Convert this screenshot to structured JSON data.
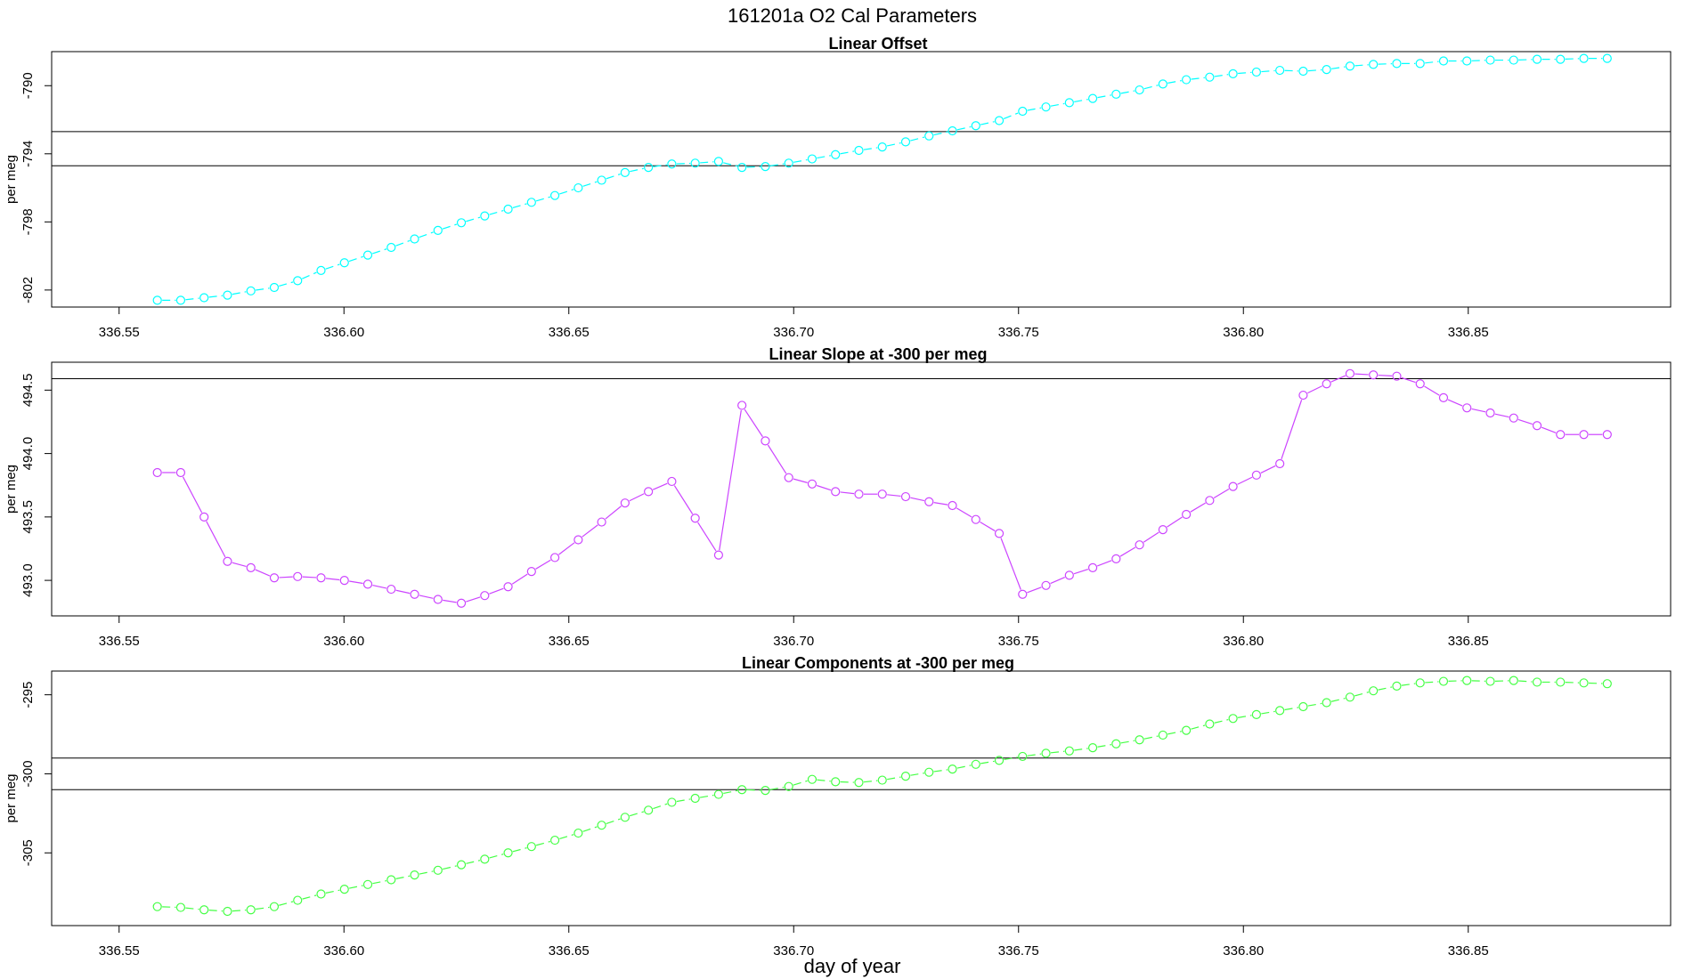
{
  "title": "161201a    O2 Cal Parameters",
  "xlabel": "day of year",
  "chart_data": [
    {
      "type": "line",
      "title": "Linear Offset",
      "ylabel": "per meg",
      "color": "#00ffff",
      "linestyle": "dashed",
      "xlim": [
        336.535,
        336.895
      ],
      "ylim": [
        -803.0,
        -788.0
      ],
      "xticks": [
        "336.55",
        "336.60",
        "336.65",
        "336.70",
        "336.75",
        "336.80",
        "336.85"
      ],
      "yticks": [
        "-790",
        "-794",
        "-798",
        "-802"
      ],
      "hlines": [
        -792.7,
        -794.7
      ],
      "x": [
        336.5585,
        336.5637,
        336.5689,
        336.5741,
        336.5793,
        336.5845,
        336.5897,
        336.5949,
        336.6001,
        336.6053,
        336.6105,
        336.6157,
        336.6209,
        336.6261,
        336.6313,
        336.6365,
        336.6417,
        336.6469,
        336.6521,
        336.6573,
        336.6625,
        336.6677,
        336.6729,
        336.6781,
        336.6833,
        336.6885,
        336.6937,
        336.6989,
        336.7041,
        336.7093,
        336.7145,
        336.7197,
        336.7249,
        336.7301,
        336.7353,
        336.7405,
        336.7457,
        336.7509,
        336.7561,
        336.7613,
        336.7665,
        336.7717,
        336.7769,
        336.7821,
        336.7873,
        336.7925,
        336.7977,
        336.8029,
        336.8081,
        336.8133,
        336.8185,
        336.8237,
        336.8289,
        336.8341,
        336.8393,
        336.8445,
        336.8497,
        336.8549,
        336.8601,
        336.8653,
        336.8705,
        336.8757,
        336.8809
      ],
      "y": [
        -802.6,
        -802.6,
        -802.45,
        -802.3,
        -802.05,
        -801.85,
        -801.45,
        -800.85,
        -800.4,
        -799.95,
        -799.5,
        -799.0,
        -798.5,
        -798.05,
        -797.65,
        -797.25,
        -796.85,
        -796.45,
        -796.0,
        -795.55,
        -795.1,
        -794.8,
        -794.6,
        -794.55,
        -794.45,
        -794.8,
        -794.75,
        -794.55,
        -794.3,
        -794.05,
        -793.8,
        -793.6,
        -793.3,
        -792.95,
        -792.65,
        -792.35,
        -792.05,
        -791.5,
        -791.25,
        -791.0,
        -790.75,
        -790.5,
        -790.25,
        -789.9,
        -789.65,
        -789.5,
        -789.3,
        -789.2,
        -789.1,
        -789.15,
        -789.05,
        -788.85,
        -788.75,
        -788.7,
        -788.7,
        -788.55,
        -788.55,
        -788.5,
        -788.5,
        -788.45,
        -788.45,
        -788.4,
        -788.4
      ]
    },
    {
      "type": "line",
      "title": "Linear Slope at -300 per meg",
      "ylabel": "per meg",
      "color": "#cc44ff",
      "linestyle": "solid",
      "xlim": [
        336.535,
        336.895
      ],
      "ylim": [
        492.72,
        494.72
      ],
      "xticks": [
        "336.55",
        "336.60",
        "336.65",
        "336.70",
        "336.75",
        "336.80",
        "336.85"
      ],
      "yticks": [
        "493.0",
        "493.5",
        "494.0",
        "494.5"
      ],
      "hlines": [
        494.59
      ],
      "x": [
        336.5585,
        336.5637,
        336.5689,
        336.5741,
        336.5793,
        336.5845,
        336.5897,
        336.5949,
        336.6001,
        336.6053,
        336.6105,
        336.6157,
        336.6209,
        336.6261,
        336.6313,
        336.6365,
        336.6417,
        336.6469,
        336.6521,
        336.6573,
        336.6625,
        336.6677,
        336.6729,
        336.6781,
        336.6833,
        336.6885,
        336.6937,
        336.6989,
        336.7041,
        336.7093,
        336.7145,
        336.7197,
        336.7249,
        336.7301,
        336.7353,
        336.7405,
        336.7457,
        336.7509,
        336.7561,
        336.7613,
        336.7665,
        336.7717,
        336.7769,
        336.7821,
        336.7873,
        336.7925,
        336.7977,
        336.8029,
        336.8081,
        336.8133,
        336.8185,
        336.8237,
        336.8289,
        336.8341,
        336.8393,
        336.8445,
        336.8497,
        336.8549,
        336.8601,
        336.8653,
        336.8705,
        336.8757,
        336.8809
      ],
      "y": [
        493.85,
        493.85,
        493.5,
        493.15,
        493.1,
        493.02,
        493.03,
        493.02,
        493.0,
        492.97,
        492.93,
        492.89,
        492.85,
        492.82,
        492.88,
        492.95,
        493.07,
        493.18,
        493.32,
        493.46,
        493.61,
        493.7,
        493.78,
        493.49,
        493.2,
        494.38,
        494.1,
        493.81,
        493.76,
        493.7,
        493.68,
        493.68,
        493.66,
        493.62,
        493.59,
        493.48,
        493.37,
        492.89,
        492.96,
        493.04,
        493.1,
        493.17,
        493.28,
        493.4,
        493.52,
        493.63,
        493.74,
        493.83,
        493.92,
        494.46,
        494.55,
        494.63,
        494.62,
        494.61,
        494.55,
        494.44,
        494.36,
        494.32,
        494.28,
        494.22,
        494.15,
        494.15,
        494.15
      ]
    },
    {
      "type": "line",
      "title": "Linear Components at -300 per meg",
      "ylabel": "per meg",
      "color": "#44ff44",
      "linestyle": "dashed",
      "xlim": [
        336.535,
        336.895
      ],
      "ylim": [
        -309.6,
        -293.5
      ],
      "xticks": [
        "336.55",
        "336.60",
        "336.65",
        "336.70",
        "336.75",
        "336.80",
        "336.85"
      ],
      "yticks": [
        "-295",
        "-300",
        "-305"
      ],
      "hlines": [
        -299.0,
        -301.0
      ],
      "x": [
        336.5585,
        336.5637,
        336.5689,
        336.5741,
        336.5793,
        336.5845,
        336.5897,
        336.5949,
        336.6001,
        336.6053,
        336.6105,
        336.6157,
        336.6209,
        336.6261,
        336.6313,
        336.6365,
        336.6417,
        336.6469,
        336.6521,
        336.6573,
        336.6625,
        336.6677,
        336.6729,
        336.6781,
        336.6833,
        336.6885,
        336.6937,
        336.6989,
        336.7041,
        336.7093,
        336.7145,
        336.7197,
        336.7249,
        336.7301,
        336.7353,
        336.7405,
        336.7457,
        336.7509,
        336.7561,
        336.7613,
        336.7665,
        336.7717,
        336.7769,
        336.7821,
        336.7873,
        336.7925,
        336.7977,
        336.8029,
        336.8081,
        336.8133,
        336.8185,
        336.8237,
        336.8289,
        336.8341,
        336.8393,
        336.8445,
        336.8497,
        336.8549,
        336.8601,
        336.8653,
        336.8705,
        336.8757,
        336.8809
      ],
      "y": [
        -308.4,
        -308.45,
        -308.6,
        -308.7,
        -308.6,
        -308.4,
        -308.0,
        -307.6,
        -307.3,
        -307.0,
        -306.7,
        -306.4,
        -306.1,
        -305.75,
        -305.4,
        -305.0,
        -304.6,
        -304.2,
        -303.75,
        -303.25,
        -302.75,
        -302.3,
        -301.8,
        -301.55,
        -301.3,
        -301.0,
        -301.05,
        -300.8,
        -300.35,
        -300.5,
        -300.55,
        -300.4,
        -300.15,
        -299.9,
        -299.7,
        -299.4,
        -299.15,
        -298.9,
        -298.7,
        -298.55,
        -298.35,
        -298.1,
        -297.85,
        -297.55,
        -297.25,
        -296.85,
        -296.5,
        -296.25,
        -296.0,
        -295.75,
        -295.5,
        -295.15,
        -294.75,
        -294.45,
        -294.25,
        -294.15,
        -294.1,
        -294.15,
        -294.1,
        -294.2,
        -294.2,
        -294.25,
        -294.3
      ]
    }
  ]
}
